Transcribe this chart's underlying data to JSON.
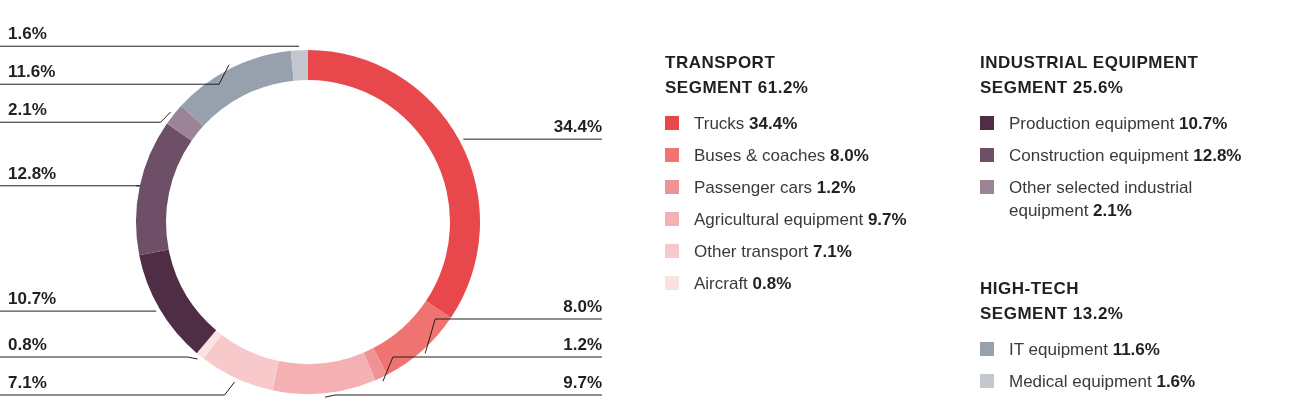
{
  "chart_data": {
    "type": "donut",
    "categories": [
      "Trucks",
      "Buses & coaches",
      "Passenger cars",
      "Agricultural equipment",
      "Other transport",
      "Aircraft",
      "Production equipment",
      "Construction equipment",
      "Other selected industrial equipment",
      "IT equipment",
      "Medical equipment"
    ],
    "values": [
      34.4,
      8.0,
      1.2,
      9.7,
      7.1,
      0.8,
      10.7,
      12.8,
      2.1,
      11.6,
      1.6
    ],
    "value_labels": [
      "34.4%",
      "8.0%",
      "1.2%",
      "9.7%",
      "7.1%",
      "0.8%",
      "10.7%",
      "12.8%",
      "2.1%",
      "11.6%",
      "1.6%"
    ],
    "colors": [
      "#e8474c",
      "#ee7371",
      "#f09395",
      "#f4b0b2",
      "#f7c9ca",
      "#fbe2e2",
      "#4f2d45",
      "#6d5068",
      "#9c8497",
      "#97a1ad",
      "#c3c7ce"
    ],
    "annotations": [
      "TRANSPORT SEGMENT 61.2%",
      "INDUSTRIAL EQUIPMENT SEGMENT 25.6%",
      "HIGH-TECH SEGMENT 13.2%"
    ],
    "legend": "right"
  }
}
